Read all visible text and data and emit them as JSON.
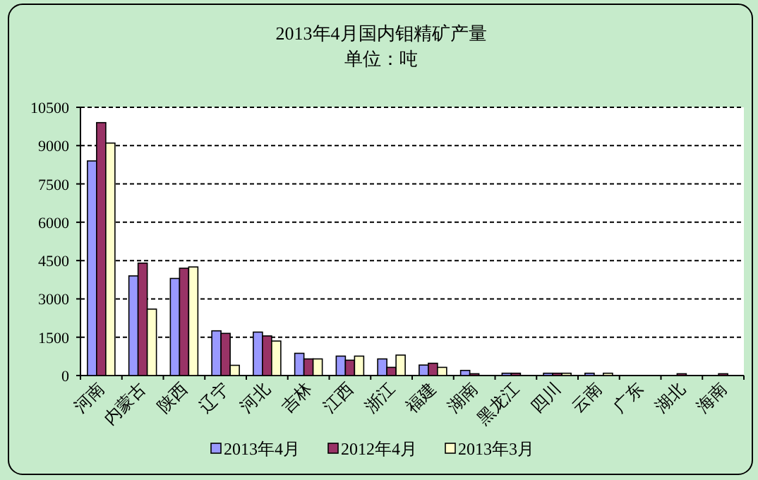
{
  "chart_data": {
    "type": "bar",
    "title": "2013年4月国内钼精矿产量",
    "subtitle": "单位：吨",
    "categories": [
      "河南",
      "内蒙古",
      "陕西",
      "辽宁",
      "河北",
      "吉林",
      "江西",
      "浙江",
      "福建",
      "湖南",
      "黑龙江",
      "四川",
      "云南",
      "广东",
      "湖北",
      "海南"
    ],
    "series": [
      {
        "name": "2013年4月",
        "color": "#9999ff",
        "values": [
          8400,
          3900,
          3800,
          1750,
          1700,
          870,
          760,
          650,
          410,
          200,
          90,
          90,
          90,
          0,
          0,
          0
        ]
      },
      {
        "name": "2012年4月",
        "color": "#993366",
        "values": [
          9900,
          4400,
          4200,
          1650,
          1550,
          650,
          600,
          320,
          480,
          70,
          90,
          90,
          0,
          0,
          70,
          70
        ]
      },
      {
        "name": "2013年3月",
        "color": "#ffffcc",
        "values": [
          9100,
          2600,
          4250,
          400,
          1350,
          650,
          760,
          800,
          320,
          0,
          0,
          90,
          90,
          0,
          0,
          0
        ]
      }
    ],
    "ylim": [
      0,
      10500
    ],
    "yticks": [
      0,
      1500,
      3000,
      4500,
      6000,
      7500,
      9000,
      10500
    ],
    "grid": "y",
    "legend": "bottom"
  }
}
